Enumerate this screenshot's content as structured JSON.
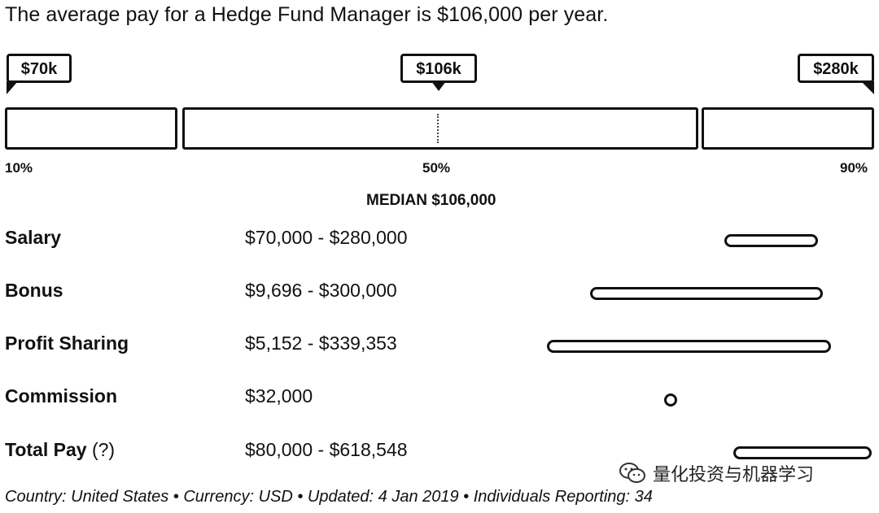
{
  "headline": "The average pay for a Hedge Fund Manager is $106,000 per year.",
  "chart_data": {
    "type": "bar",
    "title": "The average pay for a Hedge Fund Manager is $106,000 per year.",
    "percentiles": [
      {
        "label": "10%",
        "tag": "$70k",
        "value": 70000
      },
      {
        "label": "50%",
        "tag": "$106k",
        "value": 106000
      },
      {
        "label": "90%",
        "tag": "$280k",
        "value": 280000
      }
    ],
    "median_label": "MEDIAN $106,000",
    "rows": [
      {
        "label": "Salary",
        "range": "$70,000 - $280,000",
        "min": 70000,
        "max": 280000
      },
      {
        "label": "Bonus",
        "range": "$9,696 - $300,000",
        "min": 9696,
        "max": 300000
      },
      {
        "label": "Profit Sharing",
        "range": "$5,152 - $339,353",
        "min": 5152,
        "max": 339353
      },
      {
        "label": "Commission",
        "range": "$32,000",
        "min": 32000,
        "max": 32000
      },
      {
        "label": "Total Pay",
        "suffix": "(?)",
        "range": "$80,000 - $618,548",
        "min": 80000,
        "max": 618548
      }
    ]
  },
  "footer": "Country: United States  •  Currency: USD  •  Updated: 4 Jan 2019  •  Individuals Reporting: 34",
  "watermark": {
    "text": "量化投资与机器学习",
    "icon": "wechat-icon"
  }
}
